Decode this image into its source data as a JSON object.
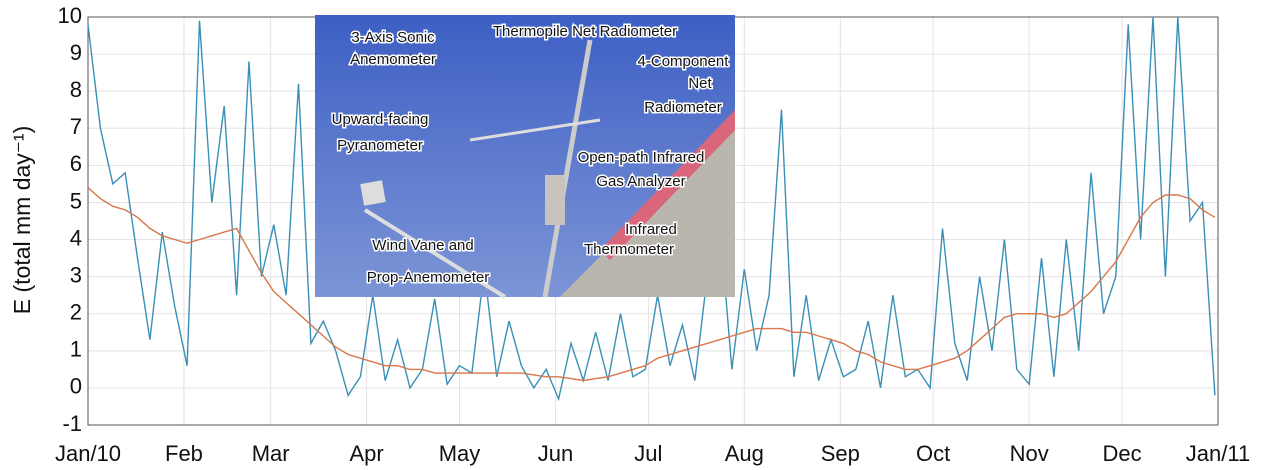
{
  "chart_data": {
    "type": "line",
    "ylabel": "E (total mm day⁻¹)",
    "x": [
      0,
      4,
      8,
      12,
      16,
      20,
      24,
      28,
      32,
      36,
      40,
      44,
      48,
      52,
      56,
      60,
      64,
      68,
      72,
      76,
      80,
      84,
      88,
      92,
      96,
      100,
      104,
      108,
      112,
      116,
      120,
      124,
      128,
      132,
      136,
      140,
      144,
      148,
      152,
      156,
      160,
      164,
      168,
      172,
      176,
      180,
      184,
      188,
      192,
      196,
      200,
      204,
      208,
      212,
      216,
      220,
      224,
      228,
      232,
      236,
      240,
      244,
      248,
      252,
      256,
      260,
      264,
      268,
      272,
      276,
      280,
      284,
      288,
      292,
      296,
      300,
      304,
      308,
      312,
      316,
      320,
      324,
      328,
      332,
      336,
      340,
      344,
      348,
      352,
      356,
      360,
      364
    ],
    "series": [
      {
        "color": "#3a8fb7",
        "values": [
          9.8,
          7,
          5.5,
          5.8,
          3.5,
          1.3,
          4.2,
          2.2,
          0.6,
          9.9,
          5,
          7.6,
          2.5,
          8.8,
          3,
          4.4,
          2.5,
          8.2,
          1.2,
          1.8,
          1,
          -0.2,
          0.3,
          2.5,
          0.2,
          1.3,
          0,
          0.5,
          2.4,
          0.1,
          0.6,
          0.4,
          3.2,
          0.3,
          1.8,
          0.6,
          0,
          0.5,
          -0.3,
          1.2,
          0.2,
          1.5,
          0.2,
          2,
          0.3,
          0.5,
          2.5,
          0.6,
          1.7,
          0.2,
          3,
          4.5,
          0.5,
          3.2,
          1,
          2.5,
          7.5,
          0.3,
          2.5,
          0.2,
          1.3,
          0.3,
          0.5,
          1.8,
          0,
          2.5,
          0.3,
          0.5,
          0,
          4.3,
          1.2,
          0.2,
          3,
          1,
          4,
          0.5,
          0.1,
          3.5,
          0.3,
          4,
          1,
          5.8,
          2,
          3,
          9.8,
          4,
          10,
          3,
          10,
          4.5,
          5,
          -0.2
        ]
      },
      {
        "color": "#d9764a",
        "values": [
          5.4,
          5.1,
          4.9,
          4.8,
          4.6,
          4.3,
          4.1,
          4.0,
          3.9,
          4.0,
          4.1,
          4.2,
          4.3,
          3.7,
          3.1,
          2.6,
          2.3,
          2.0,
          1.7,
          1.4,
          1.1,
          0.9,
          0.8,
          0.7,
          0.6,
          0.6,
          0.5,
          0.5,
          0.4,
          0.4,
          0.4,
          0.4,
          0.4,
          0.4,
          0.4,
          0.4,
          0.35,
          0.3,
          0.3,
          0.25,
          0.2,
          0.25,
          0.3,
          0.4,
          0.5,
          0.6,
          0.8,
          0.9,
          1.0,
          1.1,
          1.2,
          1.3,
          1.4,
          1.5,
          1.6,
          1.6,
          1.6,
          1.5,
          1.5,
          1.4,
          1.3,
          1.2,
          1.0,
          0.9,
          0.7,
          0.6,
          0.5,
          0.5,
          0.6,
          0.7,
          0.8,
          1.0,
          1.3,
          1.6,
          1.9,
          2.0,
          2.0,
          2.0,
          1.9,
          2.0,
          2.3,
          2.6,
          3.0,
          3.4,
          4.0,
          4.6,
          5.0,
          5.2,
          5.2,
          5.1,
          4.8,
          4.6
        ]
      }
    ],
    "xlim": [
      0,
      365
    ],
    "xticks": [
      {
        "value": 0,
        "label": "Jan/10"
      },
      {
        "value": 31,
        "label": "Feb"
      },
      {
        "value": 59,
        "label": "Mar"
      },
      {
        "value": 90,
        "label": "Apr"
      },
      {
        "value": 120,
        "label": "May"
      },
      {
        "value": 151,
        "label": "Jun"
      },
      {
        "value": 181,
        "label": "Jul"
      },
      {
        "value": 212,
        "label": "Aug"
      },
      {
        "value": 243,
        "label": "Sep"
      },
      {
        "value": 273,
        "label": "Oct"
      },
      {
        "value": 304,
        "label": "Nov"
      },
      {
        "value": 334,
        "label": "Dec"
      },
      {
        "value": 365,
        "label": "Jan/11"
      }
    ],
    "ylim": [
      -1,
      10
    ],
    "yticks": [
      -1,
      0,
      1,
      2,
      3,
      4,
      5,
      6,
      7,
      8,
      9,
      10
    ],
    "grid": true,
    "annotations": [
      "Thermopile Net Radiometer",
      "3-Axis Sonic",
      "Anemometer",
      "4-Component",
      "Net",
      "Radiometer",
      "Upward-facing",
      "Pyranometer",
      "Open-path Infrared",
      "Gas Analyzer",
      "Infrared",
      "Thermometer",
      "Wind Vane and",
      "Prop-Anemometer"
    ]
  }
}
